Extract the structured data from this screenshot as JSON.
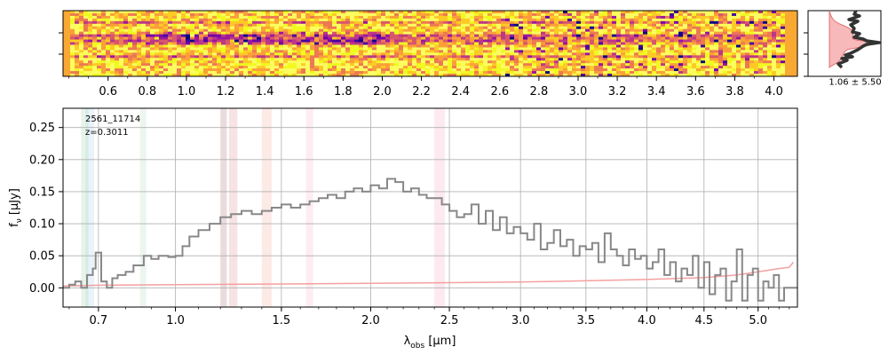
{
  "spectrum2d": {
    "x_ticks": [
      "0.6",
      "0.8",
      "1.0",
      "1.2",
      "1.4",
      "1.6",
      "1.8",
      "2.0",
      "2.2",
      "2.4",
      "2.6",
      "2.8",
      "3.0",
      "3.2",
      "3.4",
      "3.6",
      "3.8",
      "4.0"
    ],
    "x_tick_values": [
      0.6,
      0.8,
      1.0,
      1.2,
      1.4,
      1.6,
      1.8,
      2.0,
      2.2,
      2.4,
      2.6,
      2.8,
      3.0,
      3.2,
      3.4,
      3.6,
      3.8,
      4.0
    ],
    "colormap": "plasma"
  },
  "profile": {
    "label": "1.06 ± 5.50",
    "fill_color": "#f7b9b9",
    "line_color": "#333333"
  },
  "chart_data": {
    "type": "line",
    "annotation": [
      "2561_11714",
      "z=0.3011"
    ],
    "xlabel_base": "λ",
    "xlabel_sub": "obs",
    "xlabel_unit": " [μm]",
    "ylabel_base": "f",
    "ylabel_sub": "ν",
    "ylabel_unit": " [μJy]",
    "x_scale": "sqrt",
    "xlim": [
      0.58,
      5.38
    ],
    "ylim": [
      -0.03,
      0.28
    ],
    "x_ticks": [
      0.7,
      1.0,
      1.5,
      2.0,
      2.5,
      3.0,
      3.5,
      4.0,
      4.5,
      5.0
    ],
    "x_tick_labels": [
      "0.7",
      "1.0",
      "1.5",
      "2.0",
      "2.5",
      "3.0",
      "3.5",
      "4.0",
      "4.5",
      "5.0"
    ],
    "y_ticks": [
      0.0,
      0.05,
      0.1,
      0.15,
      0.2,
      0.25
    ],
    "y_tick_labels": [
      "0.00",
      "0.05",
      "0.10",
      "0.15",
      "0.20",
      "0.25"
    ],
    "grid": true,
    "flux_color": "#888888",
    "error_color": "#f4a0a0",
    "line_bands": [
      {
        "x0": 0.64,
        "x1": 0.665,
        "color": "#9fd4a8",
        "alpha": 0.25
      },
      {
        "x0": 0.655,
        "x1": 0.685,
        "color": "#a8cfe8",
        "alpha": 0.25
      },
      {
        "x0": 0.855,
        "x1": 0.88,
        "color": "#9fd4a8",
        "alpha": 0.2
      },
      {
        "x0": 1.2,
        "x1": 1.23,
        "color": "#c49a9a",
        "alpha": 0.35
      },
      {
        "x0": 1.24,
        "x1": 1.28,
        "color": "#e8b0b0",
        "alpha": 0.35
      },
      {
        "x0": 1.4,
        "x1": 1.45,
        "color": "#f4b8b0",
        "alpha": 0.3
      },
      {
        "x0": 1.63,
        "x1": 1.67,
        "color": "#f7c4d4",
        "alpha": 0.3
      },
      {
        "x0": 2.4,
        "x1": 2.47,
        "color": "#f7c4d4",
        "alpha": 0.35
      }
    ],
    "flux": {
      "x": [
        0.58,
        0.6,
        0.62,
        0.64,
        0.66,
        0.68,
        0.69,
        0.71,
        0.73,
        0.75,
        0.77,
        0.8,
        0.83,
        0.87,
        0.9,
        0.93,
        0.97,
        1.0,
        1.03,
        1.06,
        1.1,
        1.15,
        1.2,
        1.25,
        1.3,
        1.35,
        1.4,
        1.45,
        1.5,
        1.55,
        1.6,
        1.65,
        1.7,
        1.75,
        1.8,
        1.85,
        1.9,
        1.95,
        2.0,
        2.05,
        2.1,
        2.15,
        2.2,
        2.25,
        2.3,
        2.35,
        2.4,
        2.45,
        2.5,
        2.55,
        2.6,
        2.65,
        2.7,
        2.75,
        2.8,
        2.85,
        2.9,
        2.95,
        3.0,
        3.05,
        3.1,
        3.15,
        3.2,
        3.25,
        3.3,
        3.35,
        3.4,
        3.45,
        3.5,
        3.55,
        3.6,
        3.65,
        3.7,
        3.75,
        3.8,
        3.85,
        3.9,
        3.95,
        4.0,
        4.05,
        4.1,
        4.15,
        4.2,
        4.25,
        4.3,
        4.35,
        4.4,
        4.45,
        4.5,
        4.55,
        4.6,
        4.65,
        4.7,
        4.75,
        4.8,
        4.85,
        4.9,
        4.95,
        5.0,
        5.05,
        5.1,
        5.15,
        5.2,
        5.25,
        5.3,
        5.35,
        5.38
      ],
      "y": [
        0.0,
        0.005,
        0.01,
        0.0,
        0.02,
        0.03,
        0.055,
        0.01,
        0.0,
        0.015,
        0.02,
        0.025,
        0.035,
        0.05,
        0.045,
        0.05,
        0.048,
        0.05,
        0.065,
        0.08,
        0.09,
        0.1,
        0.11,
        0.115,
        0.12,
        0.115,
        0.12,
        0.125,
        0.13,
        0.125,
        0.13,
        0.135,
        0.14,
        0.145,
        0.14,
        0.15,
        0.155,
        0.15,
        0.16,
        0.155,
        0.17,
        0.165,
        0.15,
        0.155,
        0.145,
        0.14,
        0.14,
        0.13,
        0.12,
        0.11,
        0.115,
        0.13,
        0.1,
        0.12,
        0.09,
        0.11,
        0.085,
        0.095,
        0.085,
        0.075,
        0.1,
        0.06,
        0.07,
        0.09,
        0.065,
        0.075,
        0.05,
        0.065,
        0.06,
        0.07,
        0.04,
        0.085,
        0.06,
        0.05,
        0.035,
        0.06,
        0.045,
        0.05,
        0.03,
        0.04,
        0.06,
        0.02,
        0.04,
        0.01,
        0.03,
        0.02,
        0.05,
        0.0,
        0.04,
        -0.01,
        0.02,
        0.03,
        -0.02,
        0.01,
        0.06,
        -0.02,
        0.02,
        0.03,
        -0.02,
        0.01,
        0.0,
        0.02,
        -0.02,
        0.0,
        0.0,
        0.0,
        0.0
      ],
      "end_step": [
        {
          "x": 5.3,
          "y": 0.0
        },
        {
          "x": 5.38,
          "y": 0.0
        }
      ]
    },
    "error": {
      "x": [
        0.58,
        0.7,
        1.0,
        1.5,
        2.0,
        2.5,
        3.0,
        3.5,
        4.0,
        4.5,
        4.8,
        5.0,
        5.2,
        5.3,
        5.34
      ],
      "y": [
        0.003,
        0.004,
        0.005,
        0.006,
        0.007,
        0.008,
        0.009,
        0.011,
        0.013,
        0.016,
        0.02,
        0.025,
        0.03,
        0.032,
        0.04
      ]
    }
  }
}
